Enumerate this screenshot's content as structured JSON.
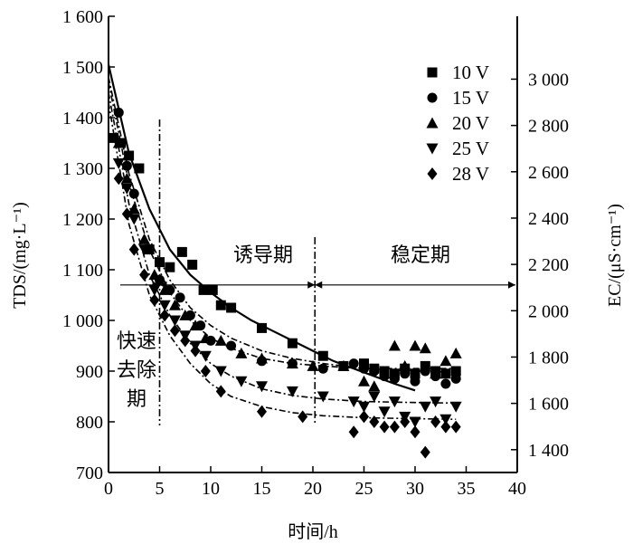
{
  "chart_data": {
    "type": "scatter",
    "xlabel": "时间/h",
    "ylabel_left": "TDS/(mg·L⁻¹)",
    "ylabel_right": "EC/(μS·cm⁻¹)",
    "xlim": [
      0,
      40
    ],
    "ylim_left": [
      700,
      1600
    ],
    "ylim_right_ticks": [
      "1 400",
      "1 600",
      "1 800",
      "2 000",
      "2 200",
      "2 400",
      "2 600",
      "2 800",
      "3 000"
    ],
    "x_ticks": [
      "0",
      "5",
      "10",
      "15",
      "20",
      "25",
      "30",
      "35",
      "40"
    ],
    "y_ticks_left": [
      "700",
      "800",
      "900",
      "1 000",
      "1 100",
      "1 200",
      "1 300",
      "1 400",
      "1 500",
      "1 600"
    ],
    "legend_placement": "top-right",
    "grid": false,
    "phase_boundaries_x": [
      5,
      20.2
    ],
    "reference_y": 1070,
    "phases": [
      {
        "label": "快速去除期",
        "lines": [
          "快速",
          "去除",
          "期"
        ]
      },
      {
        "label": "诱导期"
      },
      {
        "label": "稳定期"
      }
    ],
    "series": [
      {
        "name": "10 V",
        "marker": "square",
        "x": [
          0.5,
          1.2,
          2.0,
          3.0,
          4.0,
          5.0,
          6.0,
          7.2,
          8.2,
          9.3,
          10.2,
          11.0,
          12.0,
          15.0,
          18.0,
          21.0,
          23.0,
          25.0,
          26.0,
          27.0,
          28.0,
          29.0,
          30.0,
          31.0,
          32.0,
          33.0,
          34.0
        ],
        "y": [
          1360,
          1350,
          1325,
          1300,
          1140,
          1115,
          1105,
          1135,
          1110,
          1060,
          1060,
          1030,
          1025,
          985,
          955,
          930,
          910,
          915,
          905,
          900,
          895,
          905,
          895,
          910,
          900,
          895,
          900
        ]
      },
      {
        "name": "15 V",
        "marker": "circle",
        "x": [
          1.0,
          1.8,
          2.5,
          4.0,
          5.0,
          6.0,
          7.0,
          8.0,
          9.0,
          10.0,
          12.0,
          15.0,
          18.0,
          21.0,
          24.0,
          25.0,
          26.0,
          27.0,
          28.0,
          29.0,
          30.0,
          31.0,
          32.0,
          33.0,
          34.0
        ],
        "y": [
          1410,
          1305,
          1250,
          1140,
          1080,
          1060,
          1045,
          1010,
          990,
          960,
          950,
          920,
          915,
          905,
          915,
          905,
          900,
          890,
          885,
          895,
          880,
          900,
          890,
          875,
          885
        ]
      },
      {
        "name": "20 V",
        "marker": "triangle-up",
        "x": [
          1.0,
          1.8,
          2.5,
          3.5,
          4.5,
          5.5,
          6.5,
          7.5,
          8.5,
          9.5,
          11.0,
          13.0,
          15.0,
          18.0,
          20.0,
          23.0,
          25.0,
          26.0,
          27.0,
          28.0,
          29.0,
          30.0,
          31.0,
          32.0,
          33.0,
          34.0
        ],
        "y": [
          1350,
          1280,
          1220,
          1160,
          1090,
          1060,
          1030,
          1010,
          990,
          965,
          960,
          935,
          925,
          915,
          910,
          910,
          880,
          870,
          895,
          950,
          910,
          950,
          945,
          895,
          920,
          935
        ]
      },
      {
        "name": "25 V",
        "marker": "triangle-down",
        "x": [
          1.0,
          1.8,
          2.5,
          3.5,
          4.5,
          5.5,
          6.5,
          7.5,
          8.5,
          9.5,
          11.0,
          13.0,
          15.0,
          18.0,
          21.0,
          24.0,
          25.0,
          26.0,
          27.0,
          28.0,
          29.0,
          30.0,
          31.0,
          32.0,
          33.0,
          34.0
        ],
        "y": [
          1310,
          1260,
          1200,
          1140,
          1060,
          1030,
          1000,
          970,
          950,
          930,
          900,
          880,
          870,
          860,
          850,
          840,
          830,
          850,
          820,
          840,
          810,
          800,
          830,
          840,
          805,
          830
        ]
      },
      {
        "name": "28 V",
        "marker": "diamond",
        "x": [
          1.0,
          1.8,
          2.5,
          3.5,
          4.5,
          5.5,
          6.5,
          7.5,
          8.5,
          9.5,
          11.0,
          15.0,
          19.0,
          24.0,
          25.0,
          26.0,
          27.0,
          28.0,
          29.0,
          30.0,
          31.0,
          32.0,
          33.0,
          34.0
        ],
        "y": [
          1280,
          1210,
          1140,
          1090,
          1040,
          1010,
          980,
          960,
          940,
          900,
          860,
          820,
          810,
          780,
          810,
          800,
          790,
          790,
          800,
          780,
          740,
          800,
          790,
          790
        ]
      }
    ],
    "fit_curves": [
      {
        "series": "10 V",
        "style": "solid",
        "x": [
          0,
          2,
          4,
          6,
          8,
          10,
          12,
          14,
          16,
          18,
          20,
          22,
          24,
          26,
          28,
          30
        ],
        "y": [
          1505,
          1330,
          1220,
          1140,
          1090,
          1055,
          1025,
          1000,
          980,
          960,
          940,
          920,
          905,
          890,
          875,
          862
        ]
      },
      {
        "series": "15 V",
        "style": "dash-dot",
        "x": [
          0,
          2,
          4,
          6,
          8,
          10,
          12,
          15,
          18,
          21,
          25,
          30,
          34
        ],
        "y": [
          1480,
          1290,
          1160,
          1080,
          1025,
          990,
          965,
          940,
          925,
          915,
          905,
          900,
          898
        ]
      },
      {
        "series": "20 V",
        "style": "dash-dot",
        "x": [
          0,
          2,
          4,
          6,
          8,
          10,
          12,
          15,
          18,
          21,
          25,
          30,
          34
        ],
        "y": [
          1470,
          1270,
          1140,
          1055,
          1000,
          965,
          945,
          925,
          915,
          910,
          905,
          905,
          905
        ]
      },
      {
        "series": "25 V",
        "style": "dash-dot",
        "x": [
          0,
          2,
          4,
          6,
          8,
          10,
          12,
          15,
          18,
          21,
          25,
          30,
          34
        ],
        "y": [
          1450,
          1230,
          1090,
          1010,
          955,
          915,
          890,
          865,
          852,
          845,
          840,
          838,
          837
        ]
      },
      {
        "series": "28 V",
        "style": "dash-dot",
        "x": [
          0,
          2,
          4,
          6,
          8,
          10,
          12,
          15,
          18,
          21,
          25,
          30,
          34
        ],
        "y": [
          1430,
          1190,
          1050,
          970,
          915,
          875,
          850,
          830,
          818,
          812,
          808,
          806,
          805
        ]
      }
    ]
  }
}
